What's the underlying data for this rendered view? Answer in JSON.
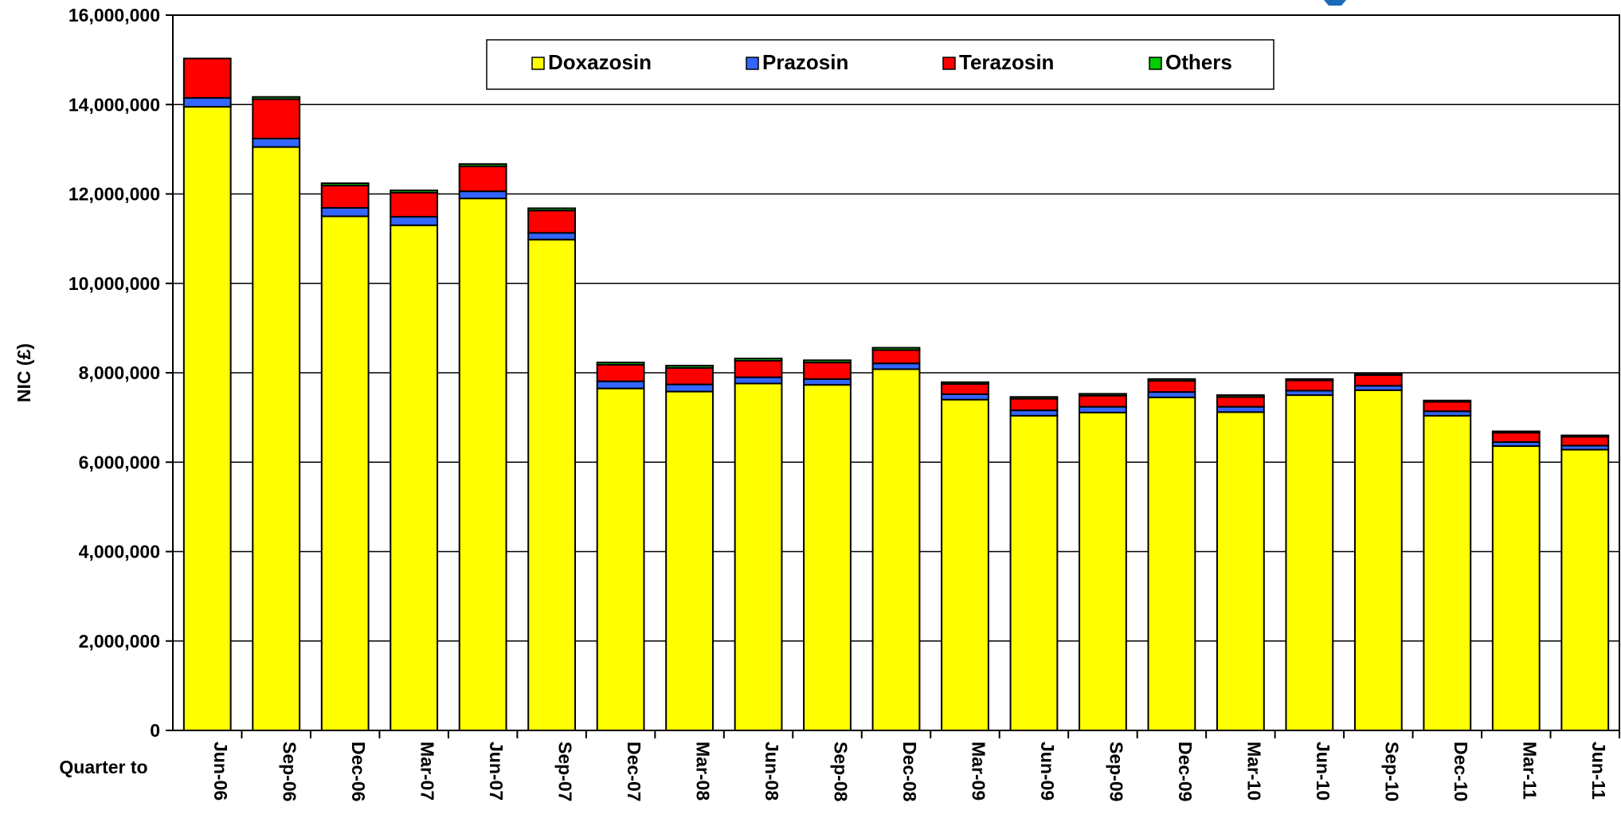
{
  "chart_data": {
    "type": "bar",
    "stacked": true,
    "title": "",
    "ylabel": "NIC (£)",
    "xlabel": "Quarter to",
    "ylim": [
      0,
      16000000
    ],
    "ytick_labels": [
      "0",
      "2,000,000",
      "4,000,000",
      "6,000,000",
      "8,000,000",
      "10,000,000",
      "12,000,000",
      "14,000,000",
      "16,000,000"
    ],
    "grid": true,
    "legend_position": "top-center",
    "categories": [
      "Jun-06",
      "Sep-06",
      "Dec-06",
      "Mar-07",
      "Jun-07",
      "Sep-07",
      "Dec-07",
      "Mar-08",
      "Jun-08",
      "Sep-08",
      "Dec-08",
      "Mar-09",
      "Jun-09",
      "Sep-09",
      "Dec-09",
      "Mar-10",
      "Jun-10",
      "Sep-10",
      "Dec-10",
      "Mar-11",
      "Jun-11"
    ],
    "series": [
      {
        "name": "Doxazosin",
        "color": "#ffff00",
        "values": [
          13950000,
          13050000,
          11500000,
          11300000,
          11900000,
          10980000,
          7650000,
          7580000,
          7760000,
          7730000,
          8080000,
          7400000,
          7040000,
          7110000,
          7450000,
          7120000,
          7500000,
          7610000,
          7040000,
          6360000,
          6280000
        ]
      },
      {
        "name": "Prazosin",
        "color": "#3366ff",
        "values": [
          200000,
          190000,
          190000,
          190000,
          160000,
          150000,
          160000,
          160000,
          140000,
          130000,
          130000,
          120000,
          120000,
          130000,
          120000,
          120000,
          100000,
          100000,
          100000,
          90000,
          90000
        ]
      },
      {
        "name": "Terazosin",
        "color": "#ff0000",
        "values": [
          880000,
          880000,
          500000,
          540000,
          560000,
          500000,
          370000,
          370000,
          370000,
          370000,
          300000,
          230000,
          260000,
          250000,
          250000,
          220000,
          230000,
          240000,
          210000,
          210000,
          200000
        ]
      },
      {
        "name": "Others",
        "color": "#00cc00",
        "values": [
          0,
          50000,
          50000,
          50000,
          50000,
          50000,
          50000,
          50000,
          50000,
          50000,
          50000,
          40000,
          40000,
          40000,
          40000,
          40000,
          30000,
          30000,
          30000,
          30000,
          30000
        ]
      }
    ]
  }
}
